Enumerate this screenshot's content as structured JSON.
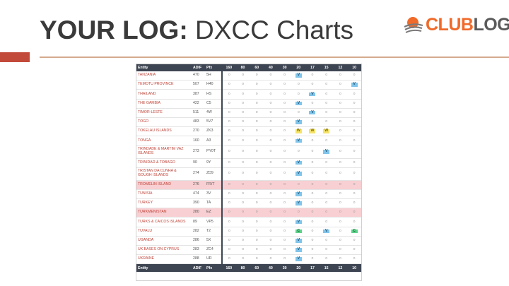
{
  "slide": {
    "title_bold": "YOUR LOG:",
    "title_rest": " DXCC Charts"
  },
  "logo": {
    "text_club": "CLUB",
    "text_log": "LOG",
    "icon": "clublog-swoosh-icon",
    "colors": {
      "club": "#f06a2a",
      "log": "#5a5a5a"
    }
  },
  "table": {
    "headers": [
      "Entity",
      "ADIF",
      "Pfx",
      "160",
      "80",
      "60",
      "40",
      "30",
      "20",
      "17",
      "15",
      "12",
      "10"
    ],
    "footer": [
      "Entity",
      "ADIF",
      "Pfx",
      "160",
      "80",
      "60",
      "40",
      "30",
      "20",
      "17",
      "15",
      "12",
      "10"
    ],
    "rows": [
      {
        "entity": "TANZANIA",
        "adif": "470",
        "pfx": "5H",
        "tall": false,
        "hl": false,
        "cells": [
          "o",
          "o",
          "o",
          "o",
          "o",
          "V",
          "o",
          "o",
          "o",
          "o"
        ]
      },
      {
        "entity": "TEMOTU PROVINCE",
        "adif": "507",
        "pfx": "H40",
        "tall": false,
        "hl": false,
        "cells": [
          "o",
          "o",
          "o",
          "o",
          "o",
          "o",
          "o",
          "o",
          "o",
          "V"
        ]
      },
      {
        "entity": "THAILAND",
        "adif": "387",
        "pfx": "HS",
        "tall": false,
        "hl": false,
        "cells": [
          "o",
          "o",
          "o",
          "o",
          "o",
          "o",
          "V",
          "o",
          "o",
          "o"
        ]
      },
      {
        "entity": "THE GAMBIA",
        "adif": "422",
        "pfx": "C5",
        "tall": false,
        "hl": false,
        "cells": [
          "o",
          "o",
          "o",
          "o",
          "o",
          "V",
          "o",
          "o",
          "o",
          "o"
        ]
      },
      {
        "entity": "TIMOR-LESTE",
        "adif": "511",
        "pfx": "4W",
        "tall": false,
        "hl": false,
        "cells": [
          "o",
          "o",
          "o",
          "o",
          "o",
          "o",
          "V",
          "o",
          "o",
          "o"
        ]
      },
      {
        "entity": "TOGO",
        "adif": "483",
        "pfx": "5V7",
        "tall": false,
        "hl": false,
        "cells": [
          "o",
          "o",
          "o",
          "o",
          "o",
          "V",
          "o",
          "o",
          "o",
          "o"
        ]
      },
      {
        "entity": "TOKELAU ISLANDS",
        "adif": "270",
        "pfx": "ZK3",
        "tall": false,
        "hl": false,
        "cells": [
          "o",
          "o",
          "o",
          "o",
          "o",
          "W",
          "W",
          "W",
          "o",
          "o"
        ]
      },
      {
        "entity": "TONGA",
        "adif": "160",
        "pfx": "A3",
        "tall": false,
        "hl": false,
        "cells": [
          "o",
          "o",
          "o",
          "o",
          "o",
          "V",
          "o",
          "o",
          "o",
          "o"
        ]
      },
      {
        "entity": "TRINDADE & MARTIM VAZ ISLANDS",
        "adif": "273",
        "pfx": "PY0T",
        "tall": true,
        "hl": false,
        "cells": [
          "o",
          "o",
          "o",
          "o",
          "o",
          "o",
          "o",
          "V",
          "o",
          "o"
        ]
      },
      {
        "entity": "TRINIDAD & TOBAGO",
        "adif": "90",
        "pfx": "9Y",
        "tall": false,
        "hl": false,
        "cells": [
          "o",
          "o",
          "o",
          "o",
          "o",
          "V",
          "o",
          "o",
          "o",
          "o"
        ]
      },
      {
        "entity": "TRISTAN DA CUNHA & GOUGH ISLANDS",
        "adif": "274",
        "pfx": "ZD9",
        "tall": true,
        "hl": false,
        "cells": [
          "o",
          "o",
          "o",
          "o",
          "o",
          "V",
          "o",
          "o",
          "o",
          "o"
        ]
      },
      {
        "entity": "TROMELIN ISLAND",
        "adif": "276",
        "pfx": "FR/T",
        "tall": false,
        "hl": true,
        "cells": [
          "o",
          "o",
          "o",
          "o",
          "o",
          "o",
          "o",
          "o",
          "o",
          "o"
        ]
      },
      {
        "entity": "TUNISIA",
        "adif": "474",
        "pfx": "3V",
        "tall": false,
        "hl": false,
        "cells": [
          "o",
          "o",
          "o",
          "o",
          "o",
          "V",
          "o",
          "o",
          "o",
          "o"
        ]
      },
      {
        "entity": "TURKEY",
        "adif": "390",
        "pfx": "TA",
        "tall": false,
        "hl": false,
        "cells": [
          "o",
          "o",
          "o",
          "o",
          "o",
          "V",
          "o",
          "o",
          "o",
          "o"
        ]
      },
      {
        "entity": "TURKMENISTAN",
        "adif": "280",
        "pfx": "EZ",
        "tall": false,
        "hl": true,
        "cells": [
          "o",
          "o",
          "o",
          "o",
          "o",
          "o",
          "o",
          "o",
          "o",
          "o"
        ]
      },
      {
        "entity": "TURKS & CAICOS ISLANDS",
        "adif": "89",
        "pfx": "VP5",
        "tall": false,
        "hl": false,
        "cells": [
          "o",
          "o",
          "o",
          "o",
          "o",
          "V",
          "o",
          "o",
          "o",
          "o"
        ]
      },
      {
        "entity": "TUVALU",
        "adif": "282",
        "pfx": "T2",
        "tall": false,
        "hl": false,
        "cells": [
          "o",
          "o",
          "o",
          "o",
          "o",
          "C",
          "o",
          "V",
          "o",
          "C"
        ]
      },
      {
        "entity": "UGANDA",
        "adif": "286",
        "pfx": "5X",
        "tall": false,
        "hl": false,
        "cells": [
          "o",
          "o",
          "o",
          "o",
          "o",
          "V",
          "o",
          "o",
          "o",
          "o"
        ]
      },
      {
        "entity": "UK BASES ON CYPRUS",
        "adif": "283",
        "pfx": "ZC4",
        "tall": false,
        "hl": false,
        "cells": [
          "o",
          "o",
          "o",
          "o",
          "o",
          "V",
          "o",
          "o",
          "o",
          "o"
        ]
      },
      {
        "entity": "UKRAINE",
        "adif": "288",
        "pfx": "UR",
        "tall": false,
        "hl": false,
        "cells": [
          "o",
          "o",
          "o",
          "o",
          "o",
          "V",
          "o",
          "o",
          "o",
          "o"
        ]
      }
    ]
  }
}
